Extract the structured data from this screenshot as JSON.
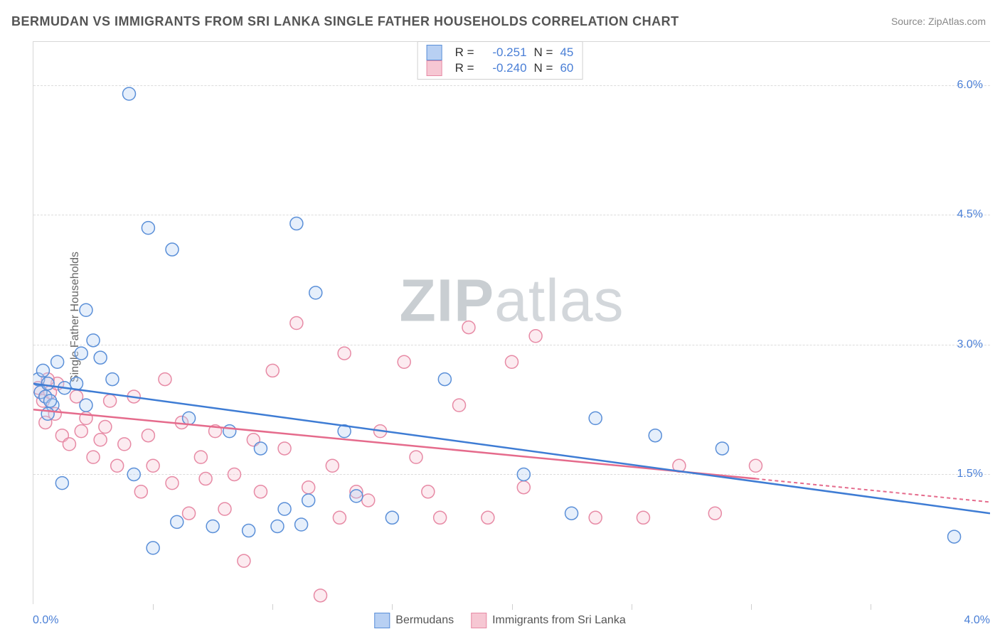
{
  "title": "BERMUDAN VS IMMIGRANTS FROM SRI LANKA SINGLE FATHER HOUSEHOLDS CORRELATION CHART",
  "source_label": "Source:",
  "source_name": "ZipAtlas.com",
  "ylabel": "Single Father Households",
  "watermark_a": "ZIP",
  "watermark_b": "atlas",
  "xaxis": {
    "min_label": "0.0%",
    "max_label": "4.0%",
    "xlim": [
      0.0,
      4.0
    ],
    "tick_positions": [
      0.5,
      1.0,
      1.5,
      2.0,
      2.5,
      3.0,
      3.5
    ]
  },
  "yaxis": {
    "ylim": [
      0.0,
      6.5
    ],
    "ticks": [
      1.5,
      3.0,
      4.5,
      6.0
    ],
    "tick_labels": [
      "1.5%",
      "3.0%",
      "4.5%",
      "6.0%"
    ],
    "tick_color": "#4a7fd6"
  },
  "colors": {
    "series_a_fill": "#b8d0f3",
    "series_a_stroke": "#5a8fd8",
    "series_b_fill": "#f6c7d3",
    "series_b_stroke": "#e78aa5",
    "trend_a": "#3e7cd4",
    "trend_b": "#e56b8c",
    "grid": "#dcdcdc",
    "background": "#ffffff"
  },
  "marker_radius": 9,
  "legend_top": {
    "rows": [
      {
        "swatch_fill": "#b8d0f3",
        "swatch_stroke": "#5a8fd8",
        "r_label": "R =",
        "r_value": "-0.251",
        "n_label": "N =",
        "n_value": "45"
      },
      {
        "swatch_fill": "#f6c7d3",
        "swatch_stroke": "#e78aa5",
        "r_label": "R =",
        "r_value": "-0.240",
        "n_label": "N =",
        "n_value": "60"
      }
    ]
  },
  "legend_bottom": {
    "items": [
      {
        "swatch_fill": "#b8d0f3",
        "swatch_stroke": "#5a8fd8",
        "label": "Bermudans"
      },
      {
        "swatch_fill": "#f6c7d3",
        "swatch_stroke": "#e78aa5",
        "label": "Immigrants from Sri Lanka"
      }
    ]
  },
  "series_a": {
    "name": "Bermudans",
    "trend": {
      "x0": 0.0,
      "y0": 2.55,
      "x1": 4.0,
      "y1": 1.05
    },
    "points": [
      [
        0.02,
        2.6
      ],
      [
        0.03,
        2.45
      ],
      [
        0.04,
        2.7
      ],
      [
        0.05,
        2.4
      ],
      [
        0.06,
        2.55
      ],
      [
        0.08,
        2.3
      ],
      [
        0.1,
        2.8
      ],
      [
        0.12,
        1.4
      ],
      [
        0.13,
        2.5
      ],
      [
        0.18,
        2.55
      ],
      [
        0.2,
        2.9
      ],
      [
        0.22,
        2.3
      ],
      [
        0.22,
        3.4
      ],
      [
        0.25,
        3.05
      ],
      [
        0.28,
        2.85
      ],
      [
        0.4,
        5.9
      ],
      [
        0.48,
        4.35
      ],
      [
        0.5,
        0.65
      ],
      [
        0.58,
        4.1
      ],
      [
        0.6,
        0.95
      ],
      [
        0.65,
        2.15
      ],
      [
        0.75,
        0.9
      ],
      [
        0.82,
        2.0
      ],
      [
        0.9,
        0.85
      ],
      [
        0.95,
        1.8
      ],
      [
        1.02,
        0.9
      ],
      [
        1.05,
        1.1
      ],
      [
        1.1,
        4.4
      ],
      [
        1.12,
        0.92
      ],
      [
        1.15,
        1.2
      ],
      [
        1.18,
        3.6
      ],
      [
        1.3,
        2.0
      ],
      [
        1.35,
        1.25
      ],
      [
        1.5,
        1.0
      ],
      [
        1.72,
        2.6
      ],
      [
        2.05,
        1.5
      ],
      [
        2.25,
        1.05
      ],
      [
        2.35,
        2.15
      ],
      [
        2.6,
        1.95
      ],
      [
        2.88,
        1.8
      ],
      [
        3.85,
        0.78
      ],
      [
        0.06,
        2.2
      ],
      [
        0.33,
        2.6
      ],
      [
        0.07,
        2.35
      ],
      [
        0.42,
        1.5
      ]
    ]
  },
  "series_b": {
    "name": "Immigrants from Sri Lanka",
    "trend": {
      "x0": 0.0,
      "y0": 2.25,
      "x1": 3.02,
      "y1": 1.45,
      "ext_x1": 4.0,
      "ext_y1": 1.18
    },
    "points": [
      [
        0.02,
        2.5
      ],
      [
        0.04,
        2.35
      ],
      [
        0.05,
        2.1
      ],
      [
        0.07,
        2.45
      ],
      [
        0.09,
        2.2
      ],
      [
        0.1,
        2.55
      ],
      [
        0.12,
        1.95
      ],
      [
        0.15,
        1.85
      ],
      [
        0.18,
        2.4
      ],
      [
        0.2,
        2.0
      ],
      [
        0.22,
        2.15
      ],
      [
        0.25,
        1.7
      ],
      [
        0.28,
        1.9
      ],
      [
        0.3,
        2.05
      ],
      [
        0.32,
        2.35
      ],
      [
        0.35,
        1.6
      ],
      [
        0.38,
        1.85
      ],
      [
        0.42,
        2.4
      ],
      [
        0.45,
        1.3
      ],
      [
        0.48,
        1.95
      ],
      [
        0.5,
        1.6
      ],
      [
        0.55,
        2.6
      ],
      [
        0.58,
        1.4
      ],
      [
        0.62,
        2.1
      ],
      [
        0.65,
        1.05
      ],
      [
        0.7,
        1.7
      ],
      [
        0.72,
        1.45
      ],
      [
        0.76,
        2.0
      ],
      [
        0.8,
        1.1
      ],
      [
        0.84,
        1.5
      ],
      [
        0.88,
        0.5
      ],
      [
        0.92,
        1.9
      ],
      [
        0.95,
        1.3
      ],
      [
        1.0,
        2.7
      ],
      [
        1.05,
        1.8
      ],
      [
        1.1,
        3.25
      ],
      [
        1.15,
        1.35
      ],
      [
        1.2,
        0.1
      ],
      [
        1.25,
        1.6
      ],
      [
        1.28,
        1.0
      ],
      [
        1.3,
        2.9
      ],
      [
        1.35,
        1.3
      ],
      [
        1.4,
        1.2
      ],
      [
        1.45,
        2.0
      ],
      [
        1.55,
        2.8
      ],
      [
        1.6,
        1.7
      ],
      [
        1.65,
        1.3
      ],
      [
        1.7,
        1.0
      ],
      [
        1.78,
        2.3
      ],
      [
        1.82,
        3.2
      ],
      [
        1.9,
        1.0
      ],
      [
        2.0,
        2.8
      ],
      [
        2.05,
        1.35
      ],
      [
        2.1,
        3.1
      ],
      [
        2.35,
        1.0
      ],
      [
        2.55,
        1.0
      ],
      [
        2.7,
        1.6
      ],
      [
        2.85,
        1.05
      ],
      [
        3.02,
        1.6
      ],
      [
        0.06,
        2.6
      ]
    ]
  }
}
